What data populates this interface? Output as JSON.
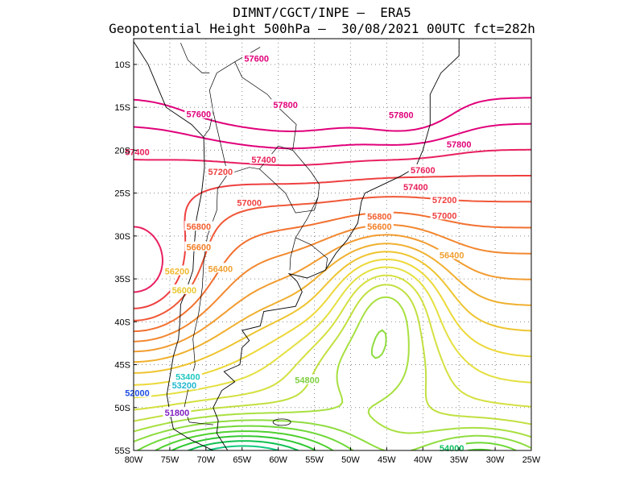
{
  "title": {
    "line1": "DIMNT/CGCT/INPE –  ERA5",
    "line2": "Geopotential Height 500hPa –  30/08/2021 00UTC fct=282h"
  },
  "map": {
    "lon_range": [
      -80,
      -25
    ],
    "lat_range": [
      -55,
      -7
    ],
    "x_tick_labels": [
      "80W",
      "75W",
      "70W",
      "65W",
      "60W",
      "55W",
      "50W",
      "45W",
      "40W",
      "35W",
      "30W",
      "25W"
    ],
    "y_tick_labels": [
      "10S",
      "15S",
      "20S",
      "25S",
      "30S",
      "35S",
      "40S",
      "45S",
      "50S",
      "55S"
    ],
    "grid": "dotted",
    "coastlines": "South America outline and country borders",
    "contour_field": "geopotential height 500hPa",
    "contour_interval": 200,
    "contour_labels": [
      {
        "text": "57600",
        "lon": -63,
        "lat": -9.3,
        "color": "#e0007a"
      },
      {
        "text": "57800",
        "lon": -59,
        "lat": -14.7,
        "color": "#e0007a"
      },
      {
        "text": "57600",
        "lon": -71,
        "lat": -15.8,
        "color": "#e0007a"
      },
      {
        "text": "57800",
        "lon": -43,
        "lat": -15.9,
        "color": "#e0007a"
      },
      {
        "text": "57800",
        "lon": -35,
        "lat": -19.3,
        "color": "#e0007a"
      },
      {
        "text": "57400",
        "lon": -79.5,
        "lat": -20.2,
        "color": "#e8205a"
      },
      {
        "text": "57400",
        "lon": -62,
        "lat": -21.1,
        "color": "#e8205a"
      },
      {
        "text": "57600",
        "lon": -40,
        "lat": -22.3,
        "color": "#e8205a"
      },
      {
        "text": "57200",
        "lon": -68,
        "lat": -22.5,
        "color": "#f04040"
      },
      {
        "text": "57400",
        "lon": -41,
        "lat": -24.3,
        "color": "#e8205a"
      },
      {
        "text": "57200",
        "lon": -37,
        "lat": -25.8,
        "color": "#f04040"
      },
      {
        "text": "57000",
        "lon": -64,
        "lat": -26.1,
        "color": "#f04040"
      },
      {
        "text": "57000",
        "lon": -37,
        "lat": -27.6,
        "color": "#f04040"
      },
      {
        "text": "56800",
        "lon": -46,
        "lat": -27.7,
        "color": "#f26030"
      },
      {
        "text": "56600",
        "lon": -46,
        "lat": -28.9,
        "color": "#f28028"
      },
      {
        "text": "56800",
        "lon": -71,
        "lat": -28.9,
        "color": "#f26030"
      },
      {
        "text": "56600",
        "lon": -71,
        "lat": -31.3,
        "color": "#f28028"
      },
      {
        "text": "56400",
        "lon": -36,
        "lat": -32.2,
        "color": "#f0a030"
      },
      {
        "text": "56400",
        "lon": -68,
        "lat": -33.8,
        "color": "#f0a030"
      },
      {
        "text": "56200",
        "lon": -74,
        "lat": -34.1,
        "color": "#f0b830"
      },
      {
        "text": "56000",
        "lon": -73,
        "lat": -36.3,
        "color": "#e8c830"
      },
      {
        "text": "54800",
        "lon": -56,
        "lat": -46.8,
        "color": "#80d040"
      },
      {
        "text": "53400",
        "lon": -72.5,
        "lat": -46.4,
        "color": "#20c8c0"
      },
      {
        "text": "53200",
        "lon": -73,
        "lat": -47.4,
        "color": "#20b8d0"
      },
      {
        "text": "52000",
        "lon": -79.5,
        "lat": -48.3,
        "color": "#2050e0"
      },
      {
        "text": "51800",
        "lon": -74,
        "lat": -50.6,
        "color": "#8020c0"
      },
      {
        "text": "54000",
        "lon": -36,
        "lat": -54.7,
        "color": "#10c060"
      }
    ],
    "contour_colors": {
      "51800": "#9000b0",
      "52000": "#7a20d0",
      "52200": "#5a30e0",
      "52400": "#4050f0",
      "52600": "#2070f0",
      "52800": "#1090f0",
      "53000": "#10b0e0",
      "53200": "#10c0d0",
      "53400": "#10c8b8",
      "53600": "#10c8a0",
      "53800": "#10c880",
      "54000": "#10c050",
      "54200": "#30c830",
      "54400": "#50d030",
      "54600": "#70d838",
      "54800": "#90dc40",
      "55000": "#a8e040",
      "55200": "#c0e040",
      "55400": "#d4e040",
      "55600": "#e4e040",
      "55800": "#ecd838",
      "56000": "#eec430",
      "56200": "#f0b030",
      "56400": "#f29c30",
      "56600": "#f28830",
      "56800": "#f27030",
      "57000": "#f05838",
      "57200": "#ee4040",
      "57400": "#e82060",
      "57600": "#e0007a",
      "57800": "#e0007a"
    }
  }
}
